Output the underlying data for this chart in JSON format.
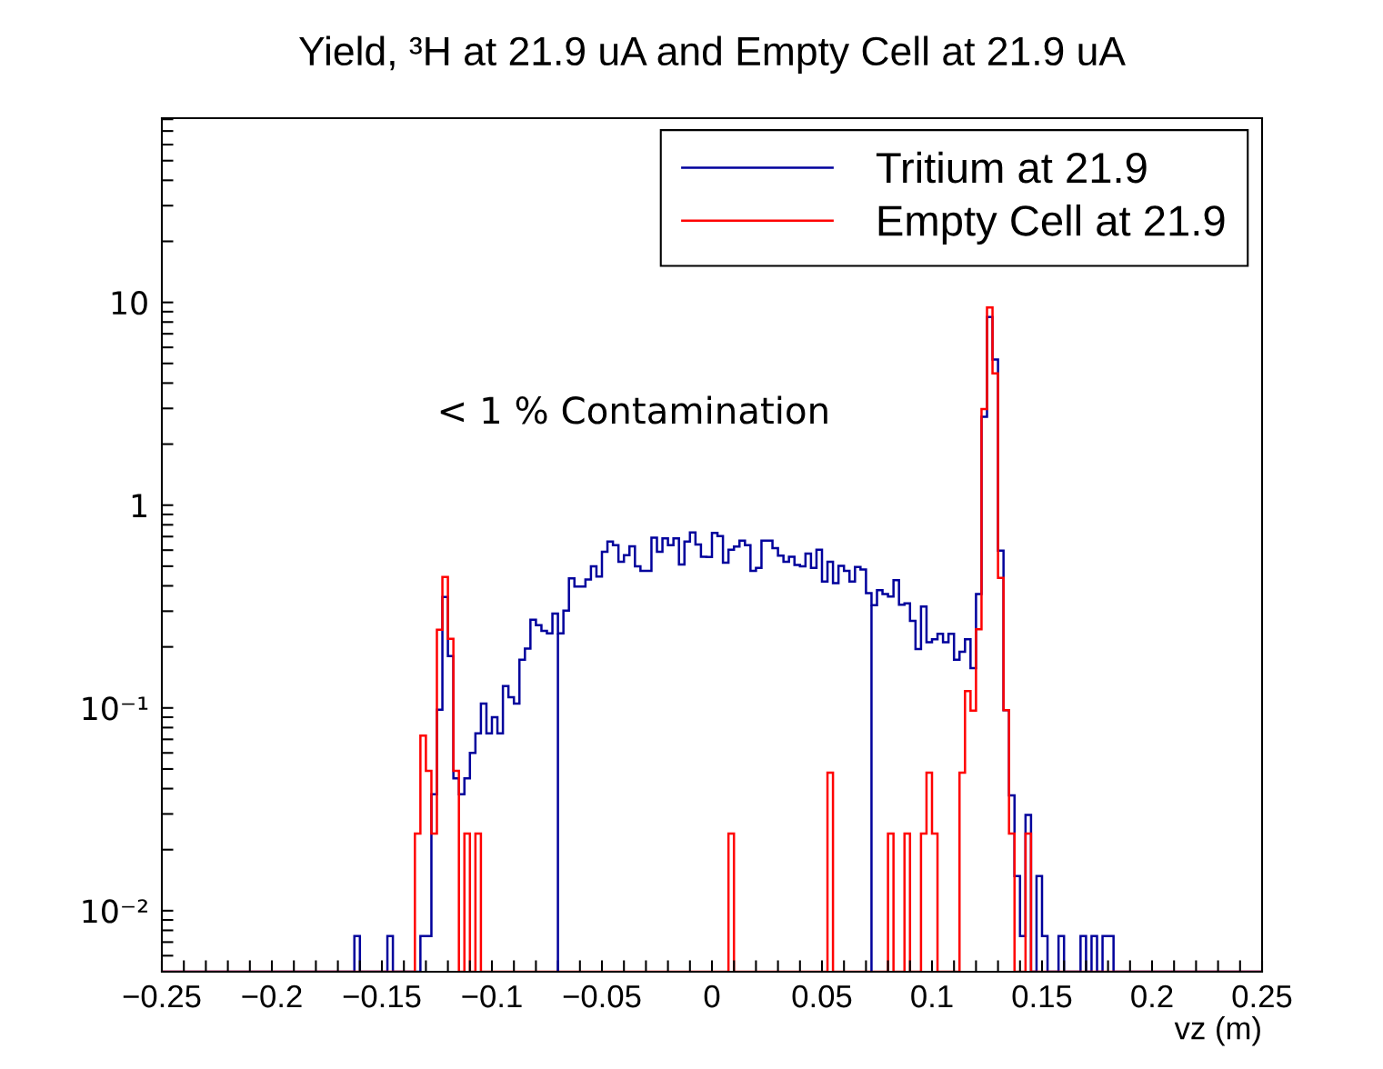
{
  "chart_data": {
    "type": "histogram",
    "title": "Yield, ³H at 21.9 uA and Empty Cell at 21.9 uA",
    "xlabel": "vz (m)",
    "bins": [
      -0.25,
      -0.2475,
      -0.245,
      -0.2425,
      -0.24,
      -0.2375,
      -0.235,
      -0.2325,
      -0.23,
      -0.2275,
      -0.225,
      -0.2225,
      -0.22,
      -0.2175,
      -0.215,
      -0.2125,
      -0.21,
      -0.2075,
      -0.205,
      -0.2025,
      -0.2,
      -0.1975,
      -0.195,
      -0.1925,
      -0.19,
      -0.1875,
      -0.185,
      -0.1825,
      -0.18,
      -0.1775,
      -0.175,
      -0.1725,
      -0.17,
      -0.1675,
      -0.165,
      -0.1625,
      -0.16,
      -0.1575,
      -0.155,
      -0.1525,
      -0.15,
      -0.1475,
      -0.145,
      -0.1425,
      -0.14,
      -0.1375,
      -0.135,
      -0.1325,
      -0.13,
      -0.1275,
      -0.125,
      -0.1225,
      -0.12,
      -0.1175,
      -0.115,
      -0.1125,
      -0.11,
      -0.1075,
      -0.105,
      -0.1025,
      -0.1,
      -0.0975,
      -0.095,
      -0.0925,
      -0.09,
      -0.0875,
      -0.085,
      -0.0825,
      -0.08,
      -0.0775,
      -0.075,
      -0.0725,
      -0.07,
      -0.0675,
      -0.065,
      -0.0625,
      -0.06,
      -0.0575,
      -0.055,
      -0.0525,
      -0.05,
      -0.0475,
      -0.045,
      -0.0425,
      -0.04,
      -0.0375,
      -0.035,
      -0.0325,
      -0.03,
      -0.0275,
      -0.025,
      -0.0225,
      -0.02,
      -0.0175,
      -0.015,
      -0.0125,
      -0.01,
      -0.0075,
      -0.005,
      -0.0025,
      0,
      0.0025,
      0.005,
      0.0075,
      0.01,
      0.0125,
      0.015,
      0.0175,
      0.02,
      0.0225,
      0.025,
      0.0275,
      0.03,
      0.0325,
      0.035,
      0.0375,
      0.04,
      0.0425,
      0.045,
      0.0475,
      0.05,
      0.0525,
      0.055,
      0.0575,
      0.06,
      0.0625,
      0.065,
      0.0675,
      0.07,
      0.0725,
      0.075,
      0.0775,
      0.08,
      0.0825,
      0.085,
      0.0875,
      0.09,
      0.0925,
      0.095,
      0.0975,
      0.1,
      0.1025,
      0.105,
      0.1075,
      0.11,
      0.1125,
      0.115,
      0.1175,
      0.12,
      0.1225,
      0.125,
      0.1275,
      0.13,
      0.1325,
      0.135,
      0.1375,
      0.14,
      0.1425,
      0.145,
      0.1475,
      0.15,
      0.1525,
      0.155,
      0.1575,
      0.16,
      0.1625,
      0.165,
      0.1675,
      0.17,
      0.1725,
      0.175,
      0.1775,
      0.18,
      0.1825,
      0.185,
      0.1875,
      0.19,
      0.1925,
      0.195,
      0.1975,
      0.2,
      0.2025,
      0.205,
      0.2075,
      0.21,
      0.2125,
      0.215,
      0.2175,
      0.22,
      0.2225,
      0.225,
      0.2275,
      0.23,
      0.2325,
      0.235,
      0.2375,
      0.24,
      0.2425,
      0.245,
      0.2475,
      0.25
    ],
    "series": [
      {
        "name": "Tritium at 21.9",
        "color": "#00009c",
        "values": [
          null,
          null,
          null,
          null,
          null,
          null,
          null,
          null,
          null,
          null,
          null,
          null,
          null,
          null,
          null,
          null,
          null,
          null,
          null,
          null,
          null,
          null,
          null,
          null,
          null,
          null,
          null,
          null,
          null,
          null,
          null,
          null,
          null,
          null,
          null,
          0.0075,
          null,
          null,
          null,
          null,
          null,
          0.0075,
          null,
          null,
          null,
          null,
          null,
          0.0075,
          0.0075,
          0.0375,
          0.098,
          0.352,
          0.18,
          0.045,
          0.0375,
          0.045,
          0.06,
          0.075,
          0.105,
          0.075,
          0.09,
          0.075,
          0.128,
          0.113,
          0.105,
          0.173,
          0.196,
          0.272,
          0.256,
          0.24,
          0.233,
          0.292,
          0.233,
          0.302,
          0.435,
          0.397,
          0.397,
          0.43,
          0.499,
          0.445,
          0.589,
          0.662,
          0.635,
          0.526,
          0.567,
          0.627,
          0.499,
          0.474,
          0.474,
          0.692,
          0.589,
          0.685,
          0.635,
          0.685,
          0.51,
          0.662,
          0.734,
          0.64,
          0.557,
          0.555,
          0.729,
          0.704,
          0.52,
          0.603,
          0.625,
          0.669,
          0.635,
          0.474,
          0.49,
          0.669,
          0.669,
          0.614,
          0.563,
          0.526,
          0.557,
          0.507,
          0.499,
          0.577,
          0.49,
          0.603,
          0.42,
          0.526,
          0.413,
          0.502,
          0.474,
          0.42,
          0.496,
          0.482,
          0.368,
          0.321,
          0.381,
          0.364,
          0.354,
          0.427,
          0.323,
          0.328,
          0.269,
          0.195,
          0.316,
          0.211,
          0.218,
          0.232,
          0.211,
          0.232,
          0.173,
          0.189,
          0.218,
          0.157,
          0.364,
          2.73,
          8.47,
          5.23,
          0.597,
          0.0975,
          0.037,
          0.0148,
          0.0075,
          0.0297,
          null,
          0.0148,
          0.0075,
          null,
          null,
          0.0075,
          null,
          null,
          null,
          0.0075,
          null,
          0.0075,
          null,
          0.0075,
          0.0075,
          null,
          null,
          null,
          null,
          null,
          null,
          null,
          null,
          null,
          null,
          null,
          null,
          null,
          null,
          null,
          null,
          null,
          null,
          null,
          null,
          null,
          null,
          null,
          null,
          null,
          null,
          null
        ]
      },
      {
        "name": "Empty Cell at 21.9",
        "color": "#ff0000",
        "values": [
          null,
          null,
          null,
          null,
          null,
          null,
          null,
          null,
          null,
          null,
          null,
          null,
          null,
          null,
          null,
          null,
          null,
          null,
          null,
          null,
          null,
          null,
          null,
          null,
          null,
          null,
          null,
          null,
          null,
          null,
          null,
          null,
          null,
          null,
          null,
          null,
          null,
          null,
          null,
          null,
          null,
          null,
          null,
          null,
          null,
          null,
          0.024,
          0.073,
          0.049,
          0.024,
          0.243,
          0.442,
          0.219,
          0.049,
          null,
          0.024,
          null,
          0.024,
          null,
          null,
          null,
          null,
          null,
          null,
          null,
          null,
          null,
          null,
          null,
          null,
          null,
          null,
          null,
          null,
          null,
          null,
          null,
          null,
          null,
          null,
          null,
          null,
          null,
          null,
          null,
          null,
          null,
          null,
          null,
          null,
          null,
          null,
          null,
          null,
          null,
          null,
          null,
          null,
          null,
          null,
          null,
          null,
          null,
          0.024,
          null,
          null,
          null,
          null,
          null,
          null,
          null,
          null,
          null,
          null,
          null,
          null,
          null,
          null,
          null,
          null,
          null,
          0.048,
          null,
          null,
          null,
          null,
          null,
          null,
          null,
          null,
          null,
          null,
          0.024,
          null,
          null,
          0.024,
          null,
          null,
          0.024,
          0.048,
          0.024,
          null,
          null,
          null,
          null,
          0.048,
          0.121,
          0.097,
          0.244,
          2.98,
          9.44,
          4.47,
          0.438,
          0.0975,
          0.024,
          null,
          null,
          0.024,
          null,
          null,
          null,
          null,
          null,
          null,
          null,
          null,
          null,
          null,
          null,
          null,
          null,
          null,
          null,
          null,
          null,
          null,
          null,
          null,
          null,
          null,
          null,
          null,
          null,
          null,
          null,
          null,
          null,
          null,
          null,
          null,
          null,
          null,
          null,
          null,
          null,
          null,
          null,
          null,
          null,
          null
        ]
      }
    ],
    "log": "y",
    "xlim": [
      -0.25,
      0.25
    ],
    "ylim": [
      0.005,
      81
    ],
    "xticks": [
      {
        "value": -0.25,
        "label": "−0.25"
      },
      {
        "value": -0.24,
        "label": null
      },
      {
        "value": -0.23,
        "label": null
      },
      {
        "value": -0.22,
        "label": null
      },
      {
        "value": -0.21,
        "label": null
      },
      {
        "value": -0.2,
        "label": "−0.2"
      },
      {
        "value": -0.19,
        "label": null
      },
      {
        "value": -0.18,
        "label": null
      },
      {
        "value": -0.17,
        "label": null
      },
      {
        "value": -0.16,
        "label": null
      },
      {
        "value": -0.15,
        "label": "−0.15"
      },
      {
        "value": -0.14,
        "label": null
      },
      {
        "value": -0.13,
        "label": null
      },
      {
        "value": -0.12,
        "label": null
      },
      {
        "value": -0.11,
        "label": null
      },
      {
        "value": -0.1,
        "label": "−0.1"
      },
      {
        "value": -0.09,
        "label": null
      },
      {
        "value": -0.08,
        "label": null
      },
      {
        "value": -0.07,
        "label": null
      },
      {
        "value": -0.06,
        "label": null
      },
      {
        "value": -0.05,
        "label": "−0.05"
      },
      {
        "value": -0.04,
        "label": null
      },
      {
        "value": -0.03,
        "label": null
      },
      {
        "value": -0.02,
        "label": null
      },
      {
        "value": -0.01,
        "label": null
      },
      0,
      {
        "value": 0.01,
        "label": null
      },
      {
        "value": 0.02,
        "label": null
      },
      {
        "value": 0.03,
        "label": null
      },
      {
        "value": 0.04,
        "label": null
      },
      0.05,
      {
        "value": 0.06,
        "label": null
      },
      {
        "value": 0.07,
        "label": null
      },
      {
        "value": 0.08,
        "label": null
      },
      {
        "value": 0.09,
        "label": null
      },
      0.1,
      {
        "value": 0.11,
        "label": null
      },
      {
        "value": 0.12,
        "label": null
      },
      {
        "value": 0.13,
        "label": null
      },
      {
        "value": 0.14,
        "label": null
      },
      0.15,
      {
        "value": 0.16,
        "label": null
      },
      {
        "value": 0.17,
        "label": null
      },
      {
        "value": 0.18,
        "label": null
      },
      {
        "value": 0.19,
        "label": null
      },
      0.2,
      {
        "value": 0.21,
        "label": null
      },
      {
        "value": 0.22,
        "label": null
      },
      {
        "value": 0.23,
        "label": null
      },
      {
        "value": 0.24,
        "label": null
      },
      0.25
    ],
    "yticks": [
      {
        "value": 0.006,
        "label": null
      },
      {
        "value": 0.007,
        "label": null
      },
      {
        "value": 0.008,
        "label": null
      },
      {
        "value": 0.009,
        "label": null
      },
      {
        "value": 0.01,
        "label": "10⁻²"
      },
      {
        "value": 0.02,
        "label": null
      },
      {
        "value": 0.03,
        "label": null
      },
      {
        "value": 0.04,
        "label": null
      },
      {
        "value": 0.05,
        "label": null
      },
      {
        "value": 0.06,
        "label": null
      },
      {
        "value": 0.07,
        "label": null
      },
      {
        "value": 0.08,
        "label": null
      },
      {
        "value": 0.09,
        "label": null
      },
      {
        "value": 0.1,
        "label": "10⁻¹"
      },
      {
        "value": 0.2,
        "label": null
      },
      {
        "value": 0.3,
        "label": null
      },
      {
        "value": 0.4,
        "label": null
      },
      {
        "value": 0.5,
        "label": null
      },
      {
        "value": 0.6,
        "label": null
      },
      {
        "value": 0.7,
        "label": null
      },
      {
        "value": 0.8,
        "label": null
      },
      {
        "value": 0.9,
        "label": null
      },
      1,
      {
        "value": 2,
        "label": null
      },
      {
        "value": 3,
        "label": null
      },
      {
        "value": 4,
        "label": null
      },
      {
        "value": 5,
        "label": null
      },
      {
        "value": 6,
        "label": null
      },
      {
        "value": 7,
        "label": null
      },
      {
        "value": 8,
        "label": null
      },
      {
        "value": 9,
        "label": null
      },
      10,
      {
        "value": 20,
        "label": null
      },
      {
        "value": 30,
        "label": null
      },
      {
        "value": 40,
        "label": null
      },
      {
        "value": 50,
        "label": null
      },
      {
        "value": 60,
        "label": null
      },
      {
        "value": 70,
        "label": null
      },
      {
        "value": 80,
        "label": null
      }
    ],
    "ref_lines": [
      {
        "axis": "x",
        "value": -0.07,
        "color": "#00009c"
      },
      {
        "axis": "x",
        "value": 0.0725,
        "color": "#00009c"
      }
    ],
    "annotations": [
      "< 1 % Contamination"
    ],
    "legend": "top right"
  }
}
